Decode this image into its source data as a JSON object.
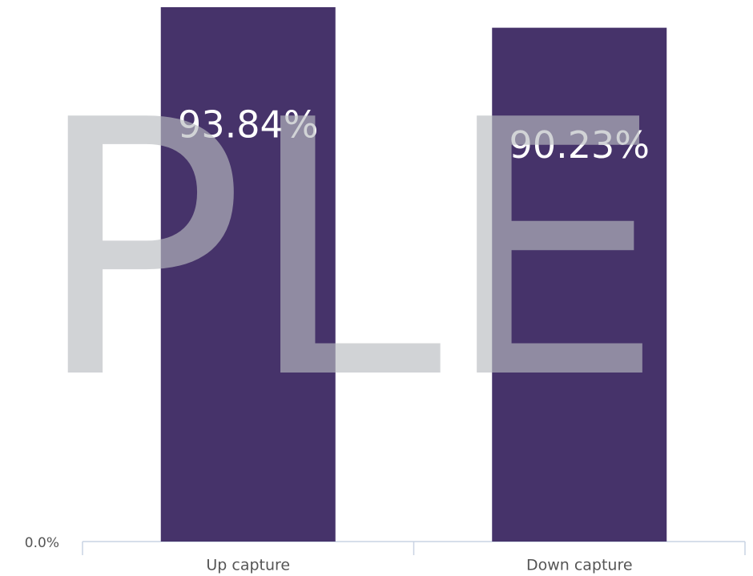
{
  "chart_data": {
    "type": "bar",
    "categories": [
      "Up capture",
      "Down capture"
    ],
    "values": [
      93.84,
      90.23
    ],
    "value_labels": [
      "93.84%",
      "90.23%"
    ],
    "color": "#46336a",
    "ylim": [
      0,
      95.1
    ],
    "yticks": [
      {
        "value": 0,
        "label": "0.0%"
      }
    ],
    "watermark": "SAMPLE"
  }
}
